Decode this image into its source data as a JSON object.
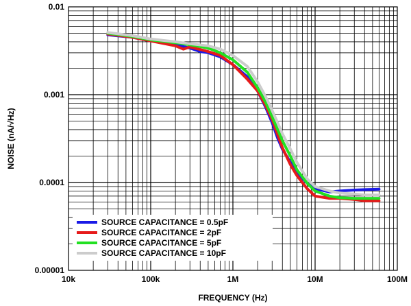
{
  "chart_data": {
    "type": "line",
    "x_scale": "log",
    "y_scale": "log",
    "xlim": [
      10000,
      100000000
    ],
    "ylim": [
      1e-05,
      0.01
    ],
    "xlabel": "FREQUENCY (Hz)",
    "ylabel": "NOISE (nA/√Hz)",
    "x_ticks": [
      "10k",
      "100k",
      "1M",
      "10M",
      "100M"
    ],
    "y_ticks": [
      "0.00001",
      "0.0001",
      "0.001",
      "0.01"
    ],
    "grid": "major and minor",
    "legend_position": "bottom-left",
    "series": [
      {
        "name": "SOURCE CAPACITANCE = 0.5pF",
        "color": "#1a1ae6",
        "points": [
          [
            30000,
            0.0048
          ],
          [
            60000,
            0.0045
          ],
          [
            100000,
            0.0041
          ],
          [
            200000,
            0.0037
          ],
          [
            300000,
            0.0034
          ],
          [
            400000,
            0.0031
          ],
          [
            500000,
            0.003
          ],
          [
            700000,
            0.0027
          ],
          [
            1000000,
            0.0022
          ],
          [
            1500000,
            0.0016
          ],
          [
            2000000,
            0.0011
          ],
          [
            2500000,
            0.00072
          ],
          [
            3000000,
            0.00048
          ],
          [
            3500000,
            0.00032
          ],
          [
            4000000,
            0.00024
          ],
          [
            5000000,
            0.00017
          ],
          [
            6000000,
            0.00013
          ],
          [
            8000000,
            9.8e-05
          ],
          [
            10000000,
            8.5e-05
          ],
          [
            15000000,
            7.8e-05
          ],
          [
            20000000,
            8e-05
          ],
          [
            30000000,
            8.2e-05
          ],
          [
            40000000,
            8.3e-05
          ],
          [
            60000000,
            8.4e-05
          ]
        ]
      },
      {
        "name": "SOURCE CAPACITANCE = 2pF",
        "color": "#e61a1a",
        "points": [
          [
            30000,
            0.0049
          ],
          [
            60000,
            0.0045
          ],
          [
            100000,
            0.0041
          ],
          [
            200000,
            0.0036
          ],
          [
            250000,
            0.0033
          ],
          [
            300000,
            0.0035
          ],
          [
            500000,
            0.0031
          ],
          [
            700000,
            0.0028
          ],
          [
            1000000,
            0.0022
          ],
          [
            1500000,
            0.0015
          ],
          [
            2000000,
            0.0011
          ],
          [
            2500000,
            0.00075
          ],
          [
            3000000,
            0.00052
          ],
          [
            3500000,
            0.00035
          ],
          [
            4000000,
            0.00025
          ],
          [
            5000000,
            0.00016
          ],
          [
            6000000,
            0.00012
          ],
          [
            8000000,
            8.5e-05
          ],
          [
            10000000,
            7e-05
          ],
          [
            15000000,
            6.6e-05
          ],
          [
            20000000,
            6.6e-05
          ],
          [
            30000000,
            6.4e-05
          ],
          [
            40000000,
            6.2e-05
          ],
          [
            60000000,
            6.2e-05
          ]
        ]
      },
      {
        "name": "SOURCE CAPACITANCE = 5pF",
        "color": "#22e022",
        "points": [
          [
            30000,
            0.005
          ],
          [
            60000,
            0.0046
          ],
          [
            100000,
            0.0042
          ],
          [
            200000,
            0.0039
          ],
          [
            300000,
            0.0037
          ],
          [
            500000,
            0.0034
          ],
          [
            700000,
            0.003
          ],
          [
            1000000,
            0.0025
          ],
          [
            1500000,
            0.0018
          ],
          [
            2000000,
            0.0012
          ],
          [
            2500000,
            0.00082
          ],
          [
            3000000,
            0.00056
          ],
          [
            3500000,
            0.0004
          ],
          [
            4000000,
            0.0003
          ],
          [
            5000000,
            0.0002
          ],
          [
            6000000,
            0.00014
          ],
          [
            8000000,
            9.8e-05
          ],
          [
            10000000,
            8e-05
          ],
          [
            15000000,
            7e-05
          ],
          [
            20000000,
            6.7e-05
          ],
          [
            30000000,
            6.6e-05
          ],
          [
            40000000,
            6.6e-05
          ],
          [
            60000000,
            6.6e-05
          ]
        ]
      },
      {
        "name": "SOURCE CAPACITANCE = 10pF",
        "color": "#cccccc",
        "points": [
          [
            30000,
            0.0051
          ],
          [
            60000,
            0.0047
          ],
          [
            100000,
            0.0043
          ],
          [
            200000,
            0.004
          ],
          [
            300000,
            0.0038
          ],
          [
            500000,
            0.0036
          ],
          [
            700000,
            0.0033
          ],
          [
            1000000,
            0.0028
          ],
          [
            1500000,
            0.0021
          ],
          [
            2000000,
            0.0014
          ],
          [
            2500000,
            0.00095
          ],
          [
            3000000,
            0.00066
          ],
          [
            3500000,
            0.00048
          ],
          [
            4000000,
            0.00036
          ],
          [
            5000000,
            0.00024
          ],
          [
            6000000,
            0.00017
          ],
          [
            8000000,
            0.00011
          ],
          [
            10000000,
            9e-05
          ],
          [
            15000000,
            8e-05
          ],
          [
            20000000,
            7.6e-05
          ],
          [
            30000000,
            7.4e-05
          ],
          [
            40000000,
            7.2e-05
          ],
          [
            60000000,
            7.2e-05
          ]
        ]
      }
    ]
  }
}
